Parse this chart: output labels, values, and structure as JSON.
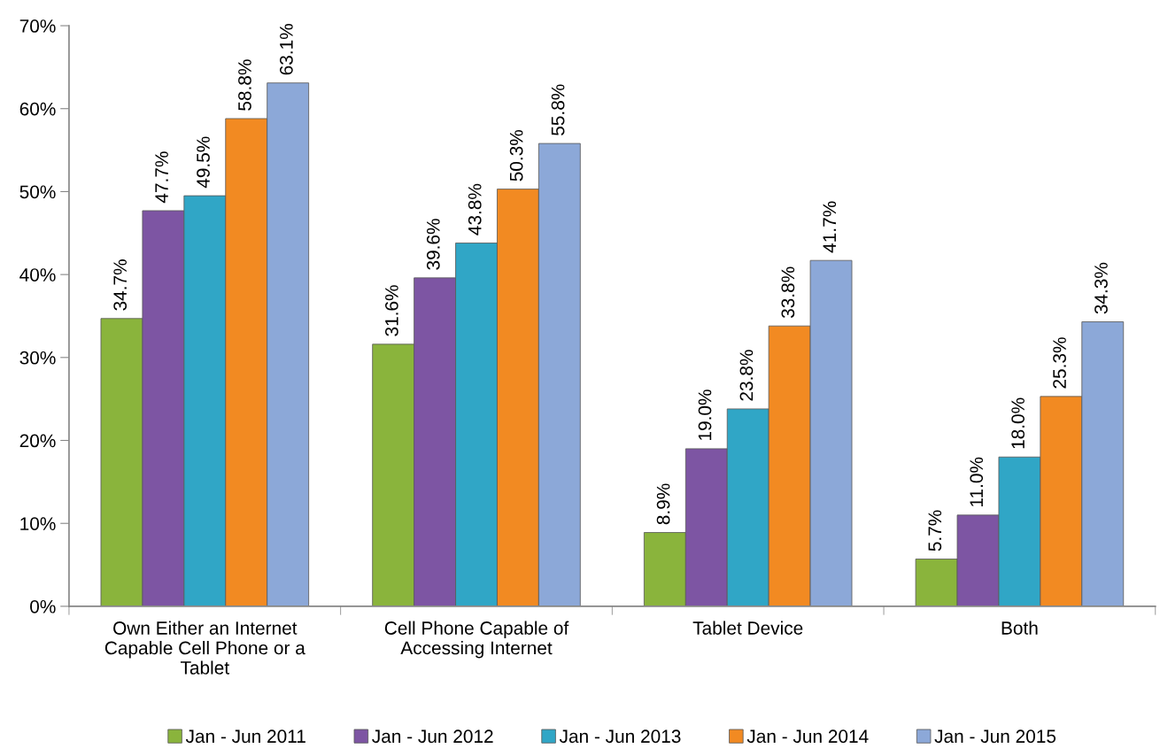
{
  "chart_data": {
    "type": "bar",
    "categories": [
      "Own Either an Internet\nCapable Cell Phone or a\nTablet",
      "Cell Phone Capable of\nAccessing Internet",
      "Tablet Device",
      "Both"
    ],
    "series": [
      {
        "name": "Jan - Jun 2011",
        "color": "#8ab43c",
        "values": [
          34.7,
          31.6,
          8.9,
          5.7
        ],
        "value_labels": [
          "34.7%",
          "31.6%",
          "8.9%",
          "5.7%"
        ]
      },
      {
        "name": "Jan - Jun 2012",
        "color": "#7d55a3",
        "values": [
          47.7,
          39.6,
          19.0,
          11.0
        ],
        "value_labels": [
          "47.7%",
          "39.6%",
          "19.0%",
          "11.0%"
        ]
      },
      {
        "name": "Jan - Jun 2013",
        "color": "#30a6c6",
        "values": [
          49.5,
          43.8,
          23.8,
          18.0
        ],
        "value_labels": [
          "49.5%",
          "43.8%",
          "23.8%",
          "18.0%"
        ]
      },
      {
        "name": "Jan - Jun 2014",
        "color": "#f28a22",
        "values": [
          58.8,
          50.3,
          33.8,
          25.3
        ],
        "value_labels": [
          "58.8%",
          "50.3%",
          "33.8%",
          "25.3%"
        ]
      },
      {
        "name": "Jan - Jun 2015",
        "color": "#8ca8d8",
        "values": [
          63.1,
          55.8,
          41.7,
          34.3
        ],
        "value_labels": [
          "63.1%",
          "55.8%",
          "41.7%",
          "34.3%"
        ]
      }
    ],
    "ylim": [
      0,
      70
    ],
    "yticks": [
      {
        "value": 0,
        "label": "0%"
      },
      {
        "value": 10,
        "label": "10%"
      },
      {
        "value": 20,
        "label": "20%"
      },
      {
        "value": 30,
        "label": "30%"
      },
      {
        "value": 40,
        "label": "40%"
      },
      {
        "value": 50,
        "label": "50%"
      },
      {
        "value": 60,
        "label": "60%"
      },
      {
        "value": 70,
        "label": "70%"
      }
    ],
    "grid": false,
    "legend": "bottom"
  }
}
